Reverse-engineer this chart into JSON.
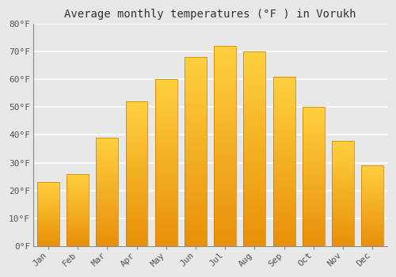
{
  "title": "Average monthly temperatures (°F ) in Vorukh",
  "months": [
    "Jan",
    "Feb",
    "Mar",
    "Apr",
    "May",
    "Jun",
    "Jul",
    "Aug",
    "Sep",
    "Oct",
    "Nov",
    "Dec"
  ],
  "values": [
    23,
    26,
    39,
    52,
    60,
    68,
    72,
    70,
    61,
    50,
    38,
    29
  ],
  "bar_color_bottom": "#E8900A",
  "bar_color_top": "#FFD040",
  "ylim": [
    0,
    80
  ],
  "yticks": [
    0,
    10,
    20,
    30,
    40,
    50,
    60,
    70,
    80
  ],
  "ytick_labels": [
    "0°F",
    "10°F",
    "20°F",
    "30°F",
    "40°F",
    "50°F",
    "60°F",
    "70°F",
    "80°F"
  ],
  "background_color": "#e8e8e8",
  "plot_bg_color": "#e8e8e8",
  "grid_color": "#ffffff",
  "title_fontsize": 10,
  "tick_fontsize": 8,
  "font_family": "monospace",
  "bar_width": 0.75,
  "spine_color": "#888888",
  "tick_color": "#555555"
}
